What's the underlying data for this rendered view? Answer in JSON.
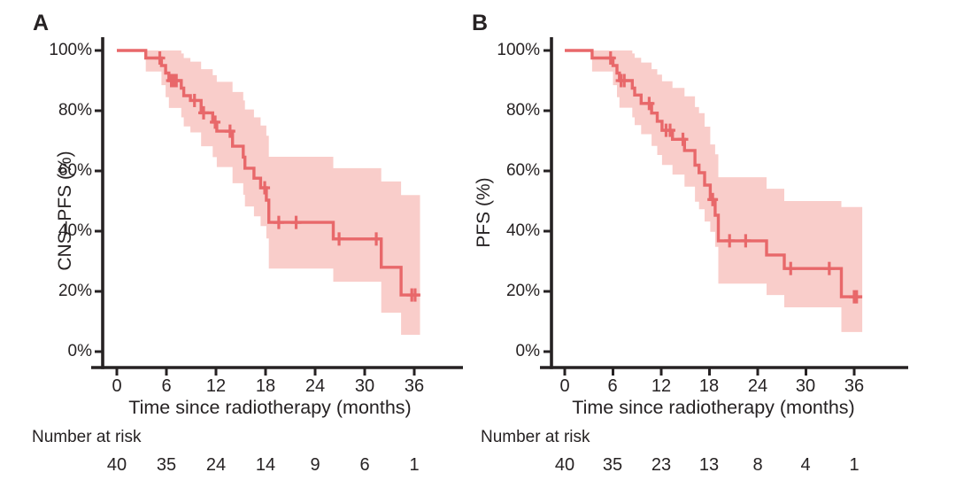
{
  "figure": {
    "background": "#ffffff",
    "ink_color": "#262223"
  },
  "chart_data": [
    {
      "type": "line",
      "subtype": "kaplan-meier-step-curve",
      "panel_label": "A",
      "ylabel": "CNS–PFS (%)",
      "xlabel": "Time since radiotherapy (months)",
      "xticks": [
        0,
        6,
        12,
        18,
        24,
        30,
        36
      ],
      "yticks": [
        100,
        80,
        60,
        40,
        20,
        0
      ],
      "ytick_labels": [
        "100%",
        "80%",
        "60%",
        "40%",
        "20%",
        "0%"
      ],
      "xlim": [
        0,
        42
      ],
      "ylim": [
        0,
        100
      ],
      "grid": false,
      "legend": "none",
      "line_color": "#e8686a",
      "band_color": "#f9cdca",
      "steps": [
        [
          0,
          100
        ],
        [
          3.5,
          97.5
        ],
        [
          5.4,
          95
        ],
        [
          5.9,
          92.5
        ],
        [
          6.3,
          90
        ],
        [
          7.8,
          87.5
        ],
        [
          8.1,
          85
        ],
        [
          8.9,
          83.4
        ],
        [
          10.2,
          79.3
        ],
        [
          11.6,
          76.2
        ],
        [
          12.1,
          73.2
        ],
        [
          14,
          68.2
        ],
        [
          15.3,
          64.6
        ],
        [
          15.5,
          60.9
        ],
        [
          16.6,
          57.6
        ],
        [
          17.4,
          54.4
        ],
        [
          18.1,
          50.3
        ],
        [
          18.4,
          42.9
        ],
        [
          26.2,
          37.4
        ],
        [
          32,
          28
        ],
        [
          34.4,
          18.8
        ]
      ],
      "curve_end": 36.7,
      "censor_times": [
        5.2,
        6.6,
        6.9,
        7.2,
        9.4,
        10.5,
        11.9,
        13.7,
        17.9,
        19.6,
        21.7,
        26.9,
        31.4,
        35.7,
        36.1
      ],
      "ci_band": [
        [
          3.5,
          93,
          100
        ],
        [
          5.4,
          88.5,
          100
        ],
        [
          5.9,
          84.5,
          100
        ],
        [
          6.3,
          80.9,
          100
        ],
        [
          7.8,
          77.8,
          99
        ],
        [
          8.1,
          74.8,
          97.5
        ],
        [
          8.9,
          72.8,
          96.3
        ],
        [
          10.2,
          68.2,
          93.8
        ],
        [
          11.6,
          64.6,
          91.8
        ],
        [
          12.1,
          61.3,
          89.6
        ],
        [
          14,
          55.9,
          86.2
        ],
        [
          15.3,
          52.1,
          83.4
        ],
        [
          15.5,
          48.2,
          80.4
        ],
        [
          16.6,
          44.9,
          77.8
        ],
        [
          17.4,
          41.7,
          75.1
        ],
        [
          18.1,
          37.6,
          71.7
        ],
        [
          18.4,
          27.6,
          64.7
        ],
        [
          26.2,
          23.2,
          60.9
        ],
        [
          32,
          12.9,
          56.5
        ],
        [
          34.4,
          5.6,
          52
        ]
      ],
      "number_at_risk": {
        "label": "Number at risk",
        "times": [
          0,
          6,
          12,
          18,
          24,
          30,
          36
        ],
        "counts": [
          40,
          35,
          24,
          14,
          9,
          6,
          1
        ]
      }
    },
    {
      "type": "line",
      "subtype": "kaplan-meier-step-curve",
      "panel_label": "B",
      "ylabel": "PFS (%)",
      "xlabel": "Time since radiotherapy (months)",
      "xticks": [
        0,
        6,
        12,
        18,
        24,
        30,
        36
      ],
      "yticks": [
        100,
        80,
        60,
        40,
        20,
        0
      ],
      "ytick_labels": [
        "100%",
        "80%",
        "60%",
        "40%",
        "20%",
        "0%"
      ],
      "xlim": [
        0,
        42
      ],
      "ylim": [
        0,
        100
      ],
      "grid": false,
      "legend": "none",
      "line_color": "#e8686a",
      "band_color": "#f9cdca",
      "steps": [
        [
          0,
          100
        ],
        [
          3.4,
          97.5
        ],
        [
          6,
          95
        ],
        [
          6.5,
          92.5
        ],
        [
          6.8,
          90
        ],
        [
          8.4,
          87.5
        ],
        [
          8.7,
          85.2
        ],
        [
          9.5,
          82.4
        ],
        [
          10.8,
          79.2
        ],
        [
          11.5,
          76.5
        ],
        [
          12.1,
          73.5
        ],
        [
          13.4,
          70.5
        ],
        [
          14.9,
          66.8
        ],
        [
          16.2,
          61.9
        ],
        [
          16.7,
          59.4
        ],
        [
          17.4,
          55.3
        ],
        [
          18.1,
          50.5
        ],
        [
          18.7,
          45.3
        ],
        [
          19.1,
          36.8
        ],
        [
          25.1,
          32.1
        ],
        [
          27.3,
          27.6
        ],
        [
          34.4,
          18.2
        ]
      ],
      "curve_end": 37,
      "censor_times": [
        5.7,
        7,
        7.4,
        10.5,
        12.6,
        13.1,
        14.7,
        18.4,
        20.5,
        22.5,
        28.1,
        32.9,
        36,
        36.3
      ],
      "ci_band": [
        [
          3.4,
          93,
          100
        ],
        [
          6,
          88.5,
          100
        ],
        [
          6.5,
          84.5,
          100
        ],
        [
          6.8,
          81,
          100
        ],
        [
          8.4,
          77.8,
          99
        ],
        [
          8.7,
          75.2,
          97.6
        ],
        [
          9.5,
          72.2,
          96
        ],
        [
          10.8,
          68.3,
          93.8
        ],
        [
          11.5,
          65.3,
          92
        ],
        [
          12.1,
          62,
          89.8
        ],
        [
          13.4,
          58.8,
          87.6
        ],
        [
          14.9,
          54.8,
          84.8
        ],
        [
          16.2,
          49.8,
          81.2
        ],
        [
          16.7,
          47.3,
          79.2
        ],
        [
          17.4,
          43.2,
          74.7
        ],
        [
          18.1,
          39.8,
          68.8
        ],
        [
          18.7,
          34.8,
          65.5
        ],
        [
          19.1,
          22.6,
          57.9
        ],
        [
          25.1,
          18.8,
          54.1
        ],
        [
          27.3,
          14.7,
          50
        ],
        [
          34.4,
          6.5,
          48
        ]
      ],
      "number_at_risk": {
        "label": "Number at risk",
        "times": [
          0,
          6,
          12,
          18,
          24,
          30,
          36
        ],
        "counts": [
          40,
          35,
          23,
          13,
          8,
          4,
          1
        ]
      }
    }
  ]
}
